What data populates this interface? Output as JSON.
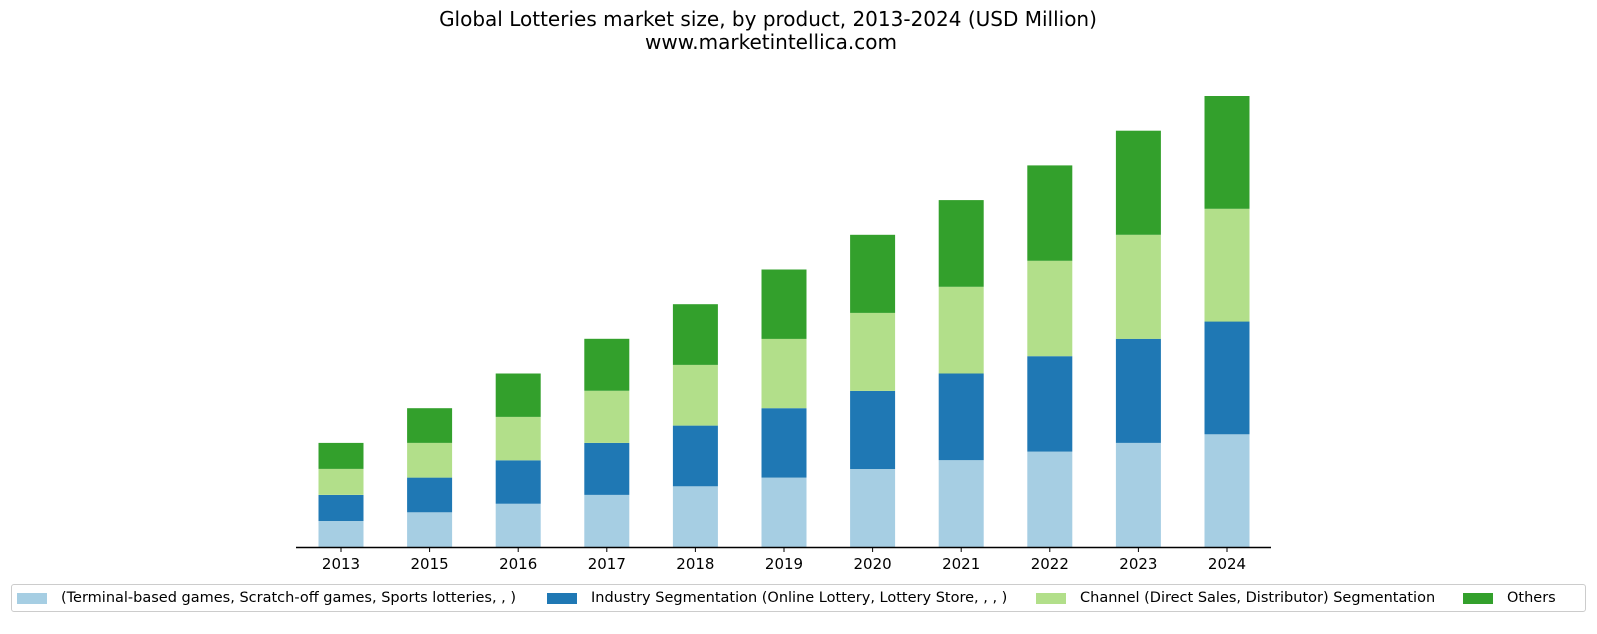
{
  "chart_data": {
    "type": "bar",
    "stacked": true,
    "title": "Global Lotteries market size, by product, 2013-2024 (USD Million)",
    "subtitle": "www.marketintellica.com",
    "categories": [
      "2013",
      "2015",
      "2016",
      "2017",
      "2018",
      "2019",
      "2020",
      "2021",
      "2022",
      "2023",
      "2024"
    ],
    "series": [
      {
        "name": "(Terminal-based games, Scratch-off games, Sports lotteries, , )",
        "color": "#a6cee3",
        "values": [
          1.5,
          2.0,
          2.5,
          3.0,
          3.5,
          4.0,
          4.5,
          5.0,
          5.5,
          6.0,
          6.5
        ]
      },
      {
        "name": "Industry Segmentation (Online Lottery, Lottery Store, , , )",
        "color": "#1f78b4",
        "values": [
          1.5,
          2.0,
          2.5,
          3.0,
          3.5,
          4.0,
          4.5,
          5.0,
          5.5,
          6.0,
          6.5
        ]
      },
      {
        "name": "Channel (Direct Sales, Distributor) Segmentation",
        "color": "#b2df8a",
        "values": [
          1.5,
          2.0,
          2.5,
          3.0,
          3.5,
          4.0,
          4.5,
          5.0,
          5.5,
          6.0,
          6.5
        ]
      },
      {
        "name": "Others",
        "color": "#33a02c",
        "values": [
          1.5,
          2.0,
          2.5,
          3.0,
          3.5,
          4.0,
          4.5,
          5.0,
          5.5,
          6.0,
          6.5
        ]
      }
    ],
    "ylim": [
      0,
      26
    ],
    "xlabel": "",
    "ylabel": "",
    "grid": false,
    "y_axis_visible": false,
    "legend_position": "bottom"
  }
}
